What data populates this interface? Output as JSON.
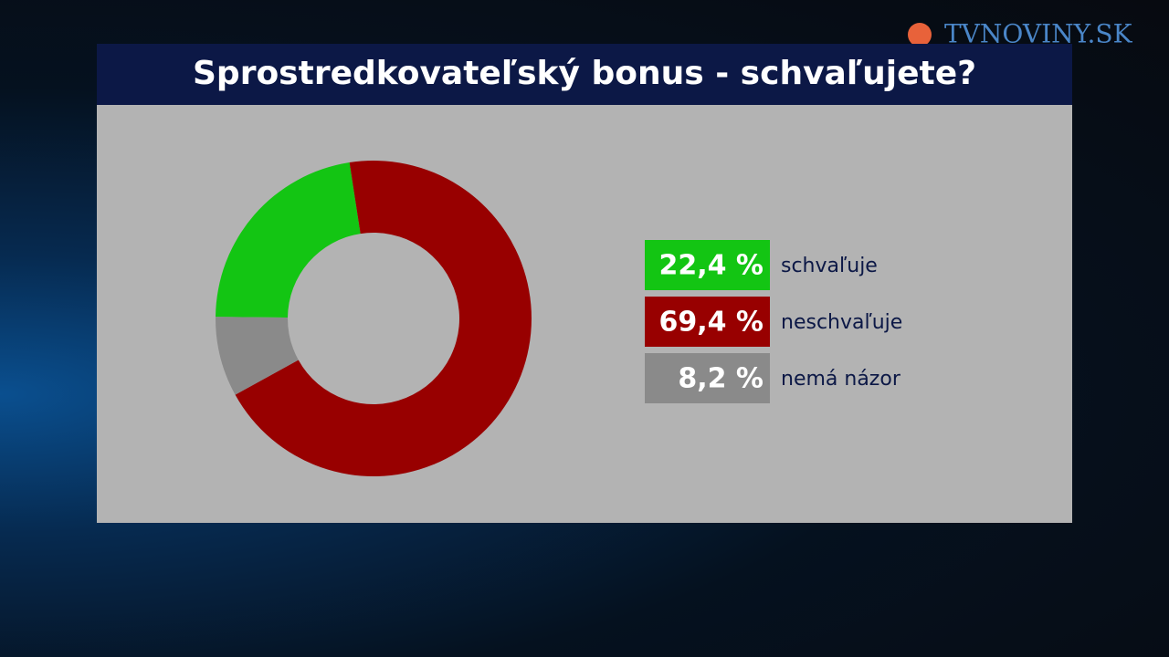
{
  "logo": "TVNOVINY.SK",
  "chart_data": {
    "type": "donut",
    "title": "Sprostredkovateľský bonus - schvaľujete?",
    "categories": [
      "schvaľuje",
      "neschvaľuje",
      "nemá názor"
    ],
    "values": [
      22.4,
      69.4,
      8.2
    ],
    "value_labels": [
      "22,4 %",
      "69,4 %",
      "8,2 %"
    ],
    "colors": [
      "#13c513",
      "#980000",
      "#8a8a8a"
    ]
  }
}
